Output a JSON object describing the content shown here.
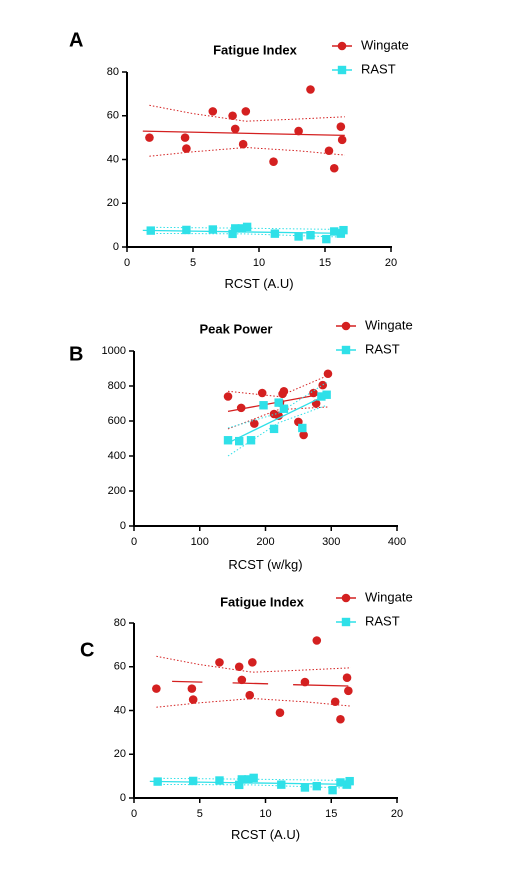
{
  "colors": {
    "wingate": "#d42020",
    "rast": "#2fe0e8",
    "axis": "#000000"
  },
  "chart_data": [
    {
      "panel": "A",
      "type": "scatter",
      "title": "Fatigue Index",
      "xlabel": "RCST (A.U)",
      "ylabel": "",
      "xlim": [
        0,
        20
      ],
      "ylim": [
        0,
        80
      ],
      "xticks": [
        "0",
        "5",
        "10",
        "15",
        "20"
      ],
      "yticks": [
        "0",
        "20",
        "40",
        "60",
        "80"
      ],
      "legend": "top-right",
      "series": [
        {
          "name": "Wingate",
          "marker": "circle",
          "x": [
            1.7,
            4.4,
            4.5,
            6.5,
            8.0,
            8.2,
            8.8,
            9.0,
            11.1,
            13.0,
            13.9,
            15.3,
            15.7,
            16.2,
            16.3
          ],
          "y": [
            50,
            50,
            45,
            62,
            60,
            54,
            47,
            62,
            39,
            53,
            72,
            44,
            36,
            55,
            49
          ],
          "fit": [
            [
              1.2,
              53
            ],
            [
              16.5,
              51
            ]
          ],
          "ci_upper": [
            [
              1.7,
              64.8
            ],
            [
              5,
              61
            ],
            [
              9,
              57.5
            ],
            [
              13,
              58.5
            ],
            [
              16.5,
              59.5
            ]
          ],
          "ci_lower": [
            [
              1.7,
              41.5
            ],
            [
              5,
              43.5
            ],
            [
              9,
              45.5
            ],
            [
              13,
              44
            ],
            [
              16.5,
              42
            ]
          ]
        },
        {
          "name": "RAST",
          "marker": "square",
          "x": [
            1.8,
            4.5,
            6.5,
            8.0,
            8.2,
            8.7,
            9.1,
            11.2,
            13.0,
            13.9,
            15.1,
            15.7,
            16.2,
            16.4
          ],
          "y": [
            7.5,
            7.8,
            8.0,
            6.0,
            8.5,
            8.5,
            9.2,
            6.1,
            4.8,
            5.4,
            3.6,
            7.1,
            6.1,
            7.7
          ],
          "fit": [
            [
              1.2,
              7.6
            ],
            [
              16.5,
              6.2
            ]
          ],
          "ci_upper": [
            [
              1.7,
              9.0
            ],
            [
              9,
              8.6
            ],
            [
              16.5,
              8.0
            ]
          ],
          "ci_lower": [
            [
              1.7,
              6.2
            ],
            [
              9,
              6.0
            ],
            [
              16.5,
              4.5
            ]
          ]
        }
      ]
    },
    {
      "panel": "B",
      "type": "scatter",
      "title": "Peak Power",
      "xlabel": "RCST (w/kg)",
      "ylabel": "",
      "xlim": [
        0,
        400
      ],
      "ylim": [
        0,
        1000
      ],
      "xticks": [
        "0",
        "100",
        "200",
        "300",
        "400"
      ],
      "yticks": [
        "0",
        "200",
        "400",
        "600",
        "800",
        "1000"
      ],
      "legend": "top-right",
      "series": [
        {
          "name": "Wingate",
          "marker": "circle",
          "x": [
            143,
            163,
            183,
            195,
            213,
            220,
            222,
            226,
            228,
            250,
            258,
            273,
            277,
            287,
            295
          ],
          "y": [
            740,
            675,
            585,
            760,
            640,
            630,
            705,
            755,
            770,
            595,
            520,
            760,
            700,
            805,
            870
          ],
          "fit": [
            [
              143,
              655
            ],
            [
              295,
              760
            ]
          ],
          "ci_upper": [
            [
              143,
              770
            ],
            [
              220,
              740
            ],
            [
              295,
              860
            ]
          ],
          "ci_lower": [
            [
              143,
              555
            ],
            [
              220,
              665
            ],
            [
              295,
              680
            ]
          ]
        },
        {
          "name": "RAST",
          "marker": "square",
          "x": [
            143,
            160,
            178,
            197,
            213,
            220,
            228,
            256,
            285,
            293
          ],
          "y": [
            490,
            485,
            490,
            690,
            555,
            705,
            670,
            560,
            740,
            750
          ],
          "fit": [
            [
              143,
              475
            ],
            [
              293,
              750
            ]
          ],
          "ci_upper": [
            [
              143,
              560
            ],
            [
              220,
              645
            ],
            [
              293,
              820
            ]
          ],
          "ci_lower": [
            [
              143,
              400
            ],
            [
              220,
              590
            ],
            [
              293,
              690
            ]
          ]
        }
      ]
    },
    {
      "panel": "C",
      "type": "scatter",
      "title": "Fatigue Index",
      "xlabel": "RCST (A.U)",
      "ylabel": "",
      "xlim": [
        0,
        20
      ],
      "ylim": [
        0,
        80
      ],
      "xticks": [
        "0",
        "5",
        "10",
        "15",
        "20"
      ],
      "yticks": [
        "0",
        "20",
        "40",
        "60",
        "80"
      ],
      "legend": "top-right",
      "series": [
        {
          "name": "Wingate",
          "marker": "circle",
          "x": [
            1.7,
            4.4,
            4.5,
            6.5,
            8.0,
            8.2,
            8.8,
            9.0,
            11.1,
            13.0,
            13.9,
            15.3,
            15.7,
            16.2,
            16.3
          ],
          "y": [
            50,
            50,
            45,
            62,
            60,
            54,
            47,
            62,
            39,
            53,
            72,
            44,
            36,
            55,
            49
          ],
          "fit_segments": [
            [
              [
                2.9,
                53.3
              ],
              [
                5.2,
                53.0
              ]
            ],
            [
              [
                7.5,
                52.6
              ],
              [
                10.2,
                52.2
              ]
            ],
            [
              [
                12.1,
                51.8
              ],
              [
                16.3,
                51.2
              ]
            ]
          ],
          "ci_upper": [
            [
              1.7,
              64.8
            ],
            [
              5,
              61
            ],
            [
              9,
              57.5
            ],
            [
              13,
              58.5
            ],
            [
              16.5,
              59.5
            ]
          ],
          "ci_lower": [
            [
              1.7,
              41.5
            ],
            [
              5,
              43.5
            ],
            [
              9,
              45.5
            ],
            [
              13,
              44
            ],
            [
              16.5,
              42
            ]
          ]
        },
        {
          "name": "RAST",
          "marker": "square",
          "x": [
            1.8,
            4.5,
            6.5,
            8.0,
            8.2,
            8.7,
            9.1,
            11.2,
            13.0,
            13.9,
            15.1,
            15.7,
            16.2,
            16.4
          ],
          "y": [
            7.5,
            7.8,
            8.0,
            6.0,
            8.5,
            8.5,
            9.2,
            6.1,
            4.8,
            5.4,
            3.6,
            7.1,
            6.1,
            7.7
          ],
          "fit_segments": [
            [
              [
                1.2,
                7.6
              ],
              [
                16.5,
                6.2
              ]
            ]
          ],
          "ci_upper": [
            [
              1.7,
              9.0
            ],
            [
              9,
              8.6
            ],
            [
              16.5,
              8.0
            ]
          ],
          "ci_lower": [
            [
              1.7,
              6.2
            ],
            [
              9,
              6.0
            ],
            [
              16.5,
              4.5
            ]
          ]
        }
      ]
    }
  ]
}
